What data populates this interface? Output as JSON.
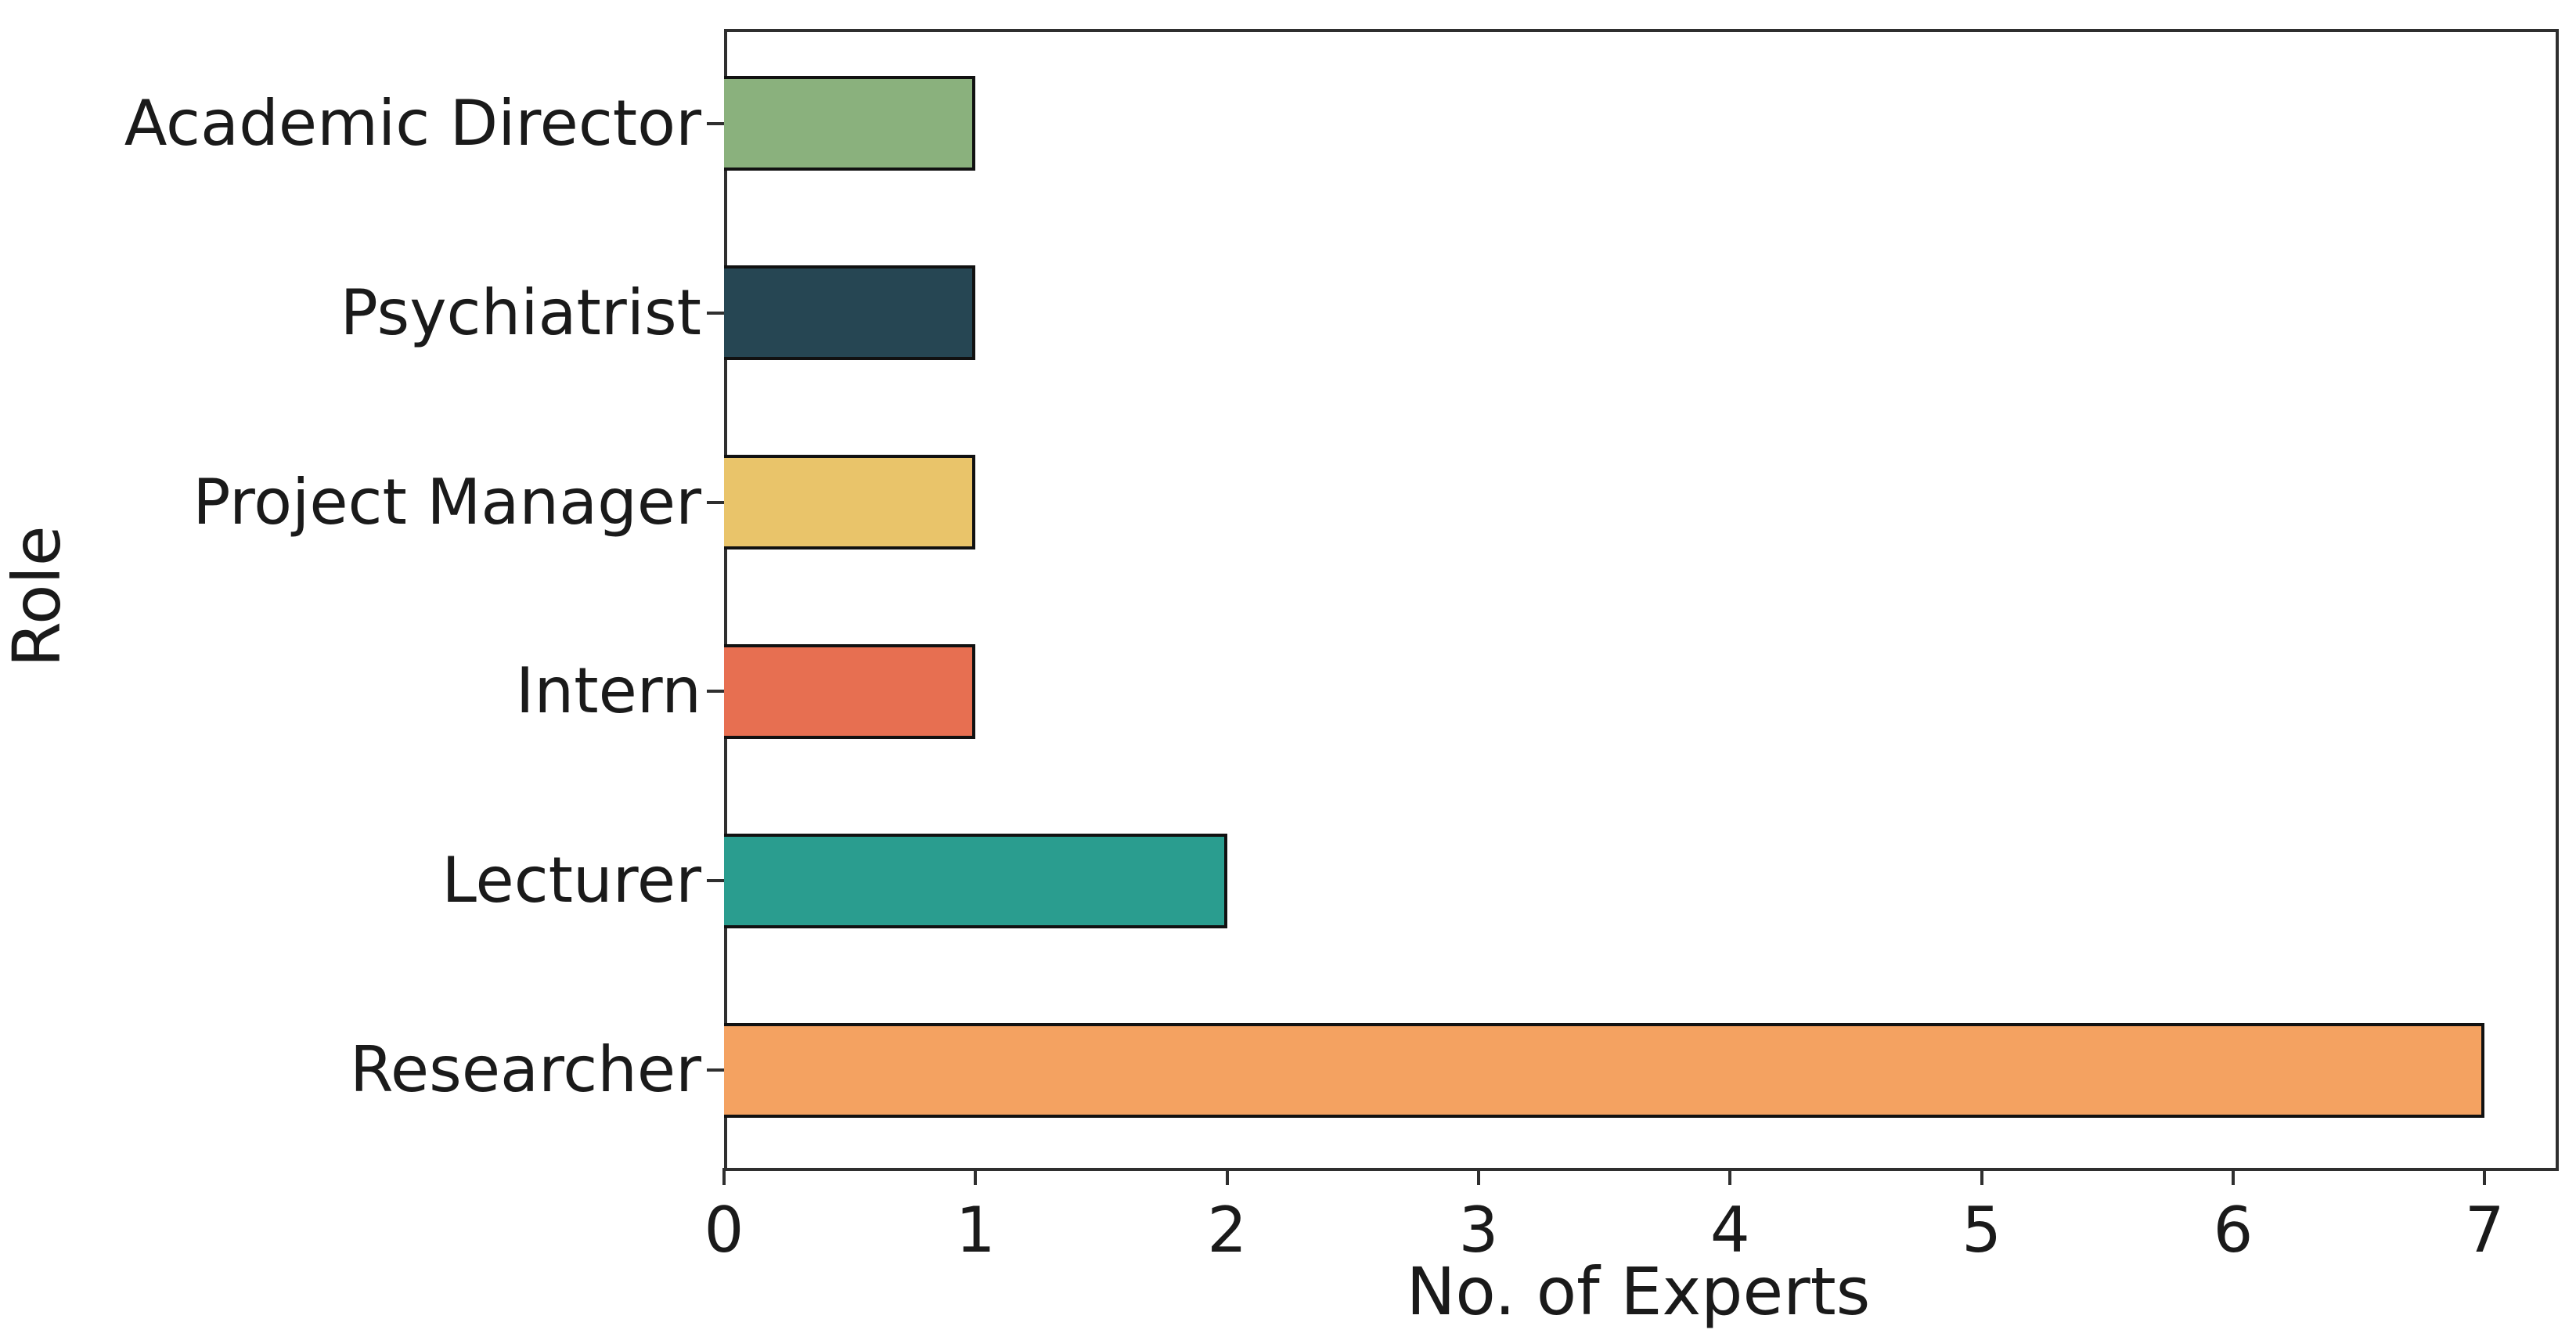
{
  "chart_data": {
    "type": "bar",
    "orientation": "horizontal",
    "title": "",
    "xlabel": "No. of Experts",
    "ylabel": "Role",
    "categories": [
      "Academic Director",
      "Psychiatrist",
      "Project Manager",
      "Intern",
      "Lecturer",
      "Researcher"
    ],
    "values": [
      1,
      1,
      1,
      1,
      2,
      7
    ],
    "bar_colors": [
      "#8ab17d",
      "#264653",
      "#e9c46a",
      "#e76f51",
      "#2a9d8f",
      "#f4a261"
    ],
    "bar_edge_color": "#111111",
    "x_ticks": [
      0,
      1,
      2,
      3,
      4,
      5,
      6,
      7
    ],
    "xlim": [
      0,
      7.27
    ],
    "bar_fraction": 0.5,
    "grid": false,
    "legend": null,
    "spine_color": "#2f2f2f",
    "text_color": "#1a1a1a",
    "background_color": "#ffffff"
  }
}
